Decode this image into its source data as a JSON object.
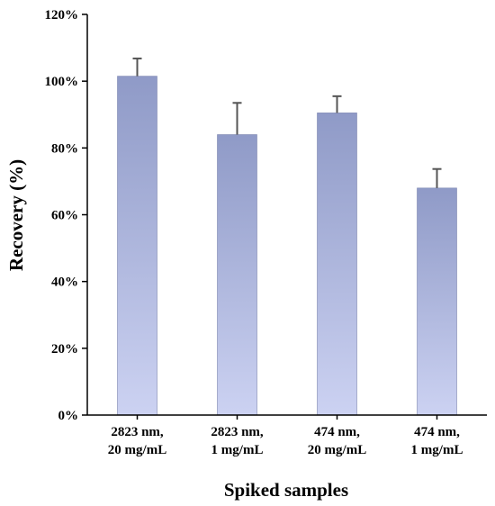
{
  "chart_data": {
    "type": "bar",
    "categories": [
      [
        "2823 nm,",
        "20 mg/mL"
      ],
      [
        "2823 nm,",
        "1 mg/mL"
      ],
      [
        "474 nm,",
        "20 mg/mL"
      ],
      [
        "474 nm,",
        "1 mg/mL"
      ]
    ],
    "values": [
      101.5,
      84,
      90.5,
      68
    ],
    "errors": [
      5.3,
      9.5,
      5,
      5.7
    ],
    "xlabel": "Spiked samples",
    "ylabel": "Recovery (%)",
    "ylim": [
      0,
      120
    ],
    "yticks": [
      "0%",
      "20%",
      "40%",
      "60%",
      "80%",
      "100%",
      "120%"
    ],
    "grid": false,
    "bar_gradient": {
      "top": "#8f9ac7",
      "bottom": "#ccd2f2"
    },
    "error_bar_color": "#555555"
  }
}
